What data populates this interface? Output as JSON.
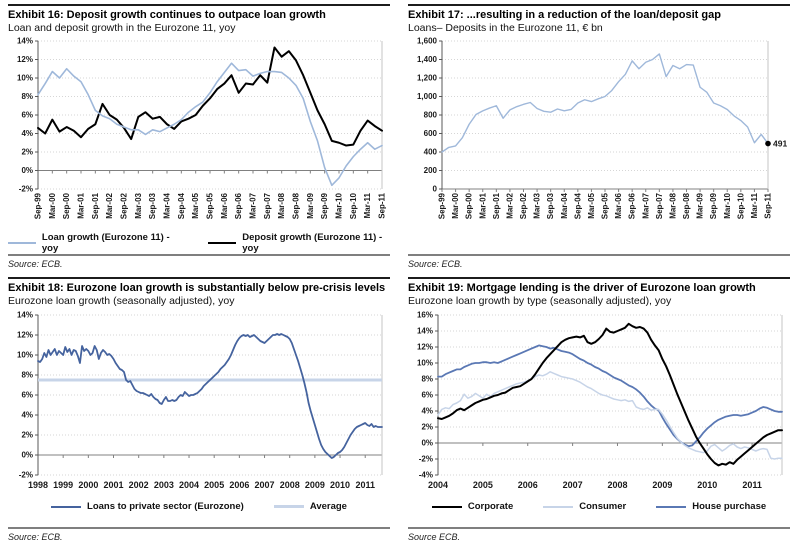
{
  "palette": {
    "grid": "#d6d6d6",
    "axis": "#595959",
    "zero_axis": "#808080",
    "right_border": "#c4c4c4",
    "light_blue": "#9fb8da",
    "pale_blue": "#c7d4e8",
    "mid_blue": "#5a78b4",
    "dark_blue": "#45639e",
    "black": "#000000"
  },
  "chart_data": [
    {
      "type": "line",
      "title": "Exhibit 16: Deposit growth continues to outpace loan growth",
      "subtitle": "Loan and deposit growth in the Eurozone 11, yoy",
      "source": "Source: ECB.",
      "ylim": [
        -2,
        14
      ],
      "yticks": [
        {
          "value": 14,
          "label": "14%"
        },
        {
          "value": 12,
          "label": "12%"
        },
        {
          "value": 10,
          "label": "10%"
        },
        {
          "value": 8,
          "label": "8%"
        },
        {
          "value": 6,
          "label": "6%"
        },
        {
          "value": 4,
          "label": "4%"
        },
        {
          "value": 2,
          "label": "2%"
        },
        {
          "value": 0,
          "label": "0%"
        },
        {
          "value": -2,
          "label": "-2%"
        }
      ],
      "zero_axis": 0,
      "x_labels": [
        "Sep-99",
        "Mar-00",
        "Sep-00",
        "Mar-01",
        "Sep-01",
        "Mar-02",
        "Sep-02",
        "Mar-03",
        "Sep-03",
        "Mar-04",
        "Sep-04",
        "Mar-05",
        "Sep-05",
        "Mar-06",
        "Sep-06",
        "Mar-07",
        "Sep-07",
        "Mar-08",
        "Sep-08",
        "Mar-09",
        "Sep-09",
        "Mar-10",
        "Sep-10",
        "Mar-11",
        "Sep-11"
      ],
      "points_per_label": 2,
      "rotate_x_labels": true,
      "series": [
        {
          "name": "Loan growth (Eurozone 11) - yoy",
          "color": "#9fb8da",
          "width": 1.6,
          "values": [
            8.2,
            9.4,
            10.7,
            10.0,
            11.0,
            10.2,
            9.6,
            8.2,
            6.5,
            5.9,
            5.6,
            5.0,
            4.7,
            4.4,
            4.4,
            3.9,
            4.4,
            4.2,
            4.6,
            5.0,
            5.5,
            6.3,
            6.9,
            7.4,
            8.4,
            9.6,
            10.6,
            11.6,
            10.8,
            10.9,
            10.2,
            10.5,
            10.7,
            10.7,
            10.6,
            10.0,
            9.2,
            7.8,
            5.3,
            3.2,
            0.3,
            -1.6,
            -0.8,
            0.5,
            1.5,
            2.3,
            3.0,
            2.3,
            2.7
          ]
        },
        {
          "name": "Deposit growth (Eurozone 11) - yoy",
          "color": "#000000",
          "width": 2,
          "values": [
            4.6,
            4.0,
            5.5,
            4.2,
            4.7,
            4.3,
            3.6,
            4.5,
            5.0,
            7.2,
            6.0,
            5.5,
            4.6,
            3.4,
            5.8,
            6.3,
            5.6,
            5.8,
            5.0,
            4.5,
            5.3,
            5.6,
            6.0,
            7.0,
            7.8,
            8.8,
            9.4,
            10.3,
            8.4,
            9.4,
            9.3,
            10.3,
            9.5,
            13.3,
            12.3,
            12.9,
            11.9,
            10.3,
            8.4,
            6.5,
            5.0,
            3.2,
            3.0,
            2.7,
            2.8,
            4.3,
            5.4,
            4.8,
            4.3
          ]
        }
      ],
      "legend": [
        {
          "label": "Loan growth (Eurozone 11) - yoy",
          "color": "#9fb8da",
          "thickness": 2
        },
        {
          "label": "Deposit growth (Eurozone 11) - yoy",
          "color": "#000000",
          "thickness": 2
        }
      ]
    },
    {
      "type": "line",
      "title": "Exhibit 17: ...resulting in a reduction of the loan/deposit gap",
      "subtitle": "Loans– Deposits in the Eurozone 11, € bn",
      "source": "Source: ECB.",
      "ylim": [
        0,
        1600
      ],
      "yticks": [
        {
          "value": 1600,
          "label": "1,600"
        },
        {
          "value": 1400,
          "label": "1,400"
        },
        {
          "value": 1200,
          "label": "1,200"
        },
        {
          "value": 1000,
          "label": "1,000"
        },
        {
          "value": 800,
          "label": "800"
        },
        {
          "value": 600,
          "label": "600"
        },
        {
          "value": 400,
          "label": "400"
        },
        {
          "value": 200,
          "label": "200"
        },
        {
          "value": 0,
          "label": "0"
        }
      ],
      "zero_axis": 0,
      "x_labels": [
        "Sep-99",
        "Mar-00",
        "Sep-00",
        "Mar-01",
        "Sep-01",
        "Mar-02",
        "Sep-02",
        "Mar-03",
        "Sep-03",
        "Mar-04",
        "Sep-04",
        "Mar-05",
        "Sep-05",
        "Mar-06",
        "Sep-06",
        "Mar-07",
        "Sep-07",
        "Mar-08",
        "Sep-08",
        "Mar-09",
        "Sep-09",
        "Mar-10",
        "Sep-10",
        "Mar-11",
        "Sep-11"
      ],
      "points_per_label": 2,
      "rotate_x_labels": true,
      "series": [
        {
          "name": "Loans minus deposits (Eurozone 11)",
          "color": "#9fb8da",
          "width": 1.4,
          "values": [
            400,
            450,
            465,
            555,
            700,
            805,
            845,
            875,
            900,
            765,
            855,
            890,
            915,
            935,
            870,
            840,
            830,
            865,
            845,
            860,
            930,
            965,
            945,
            975,
            1000,
            1065,
            1160,
            1240,
            1385,
            1300,
            1370,
            1400,
            1460,
            1215,
            1335,
            1300,
            1345,
            1340,
            1100,
            1045,
            930,
            900,
            860,
            790,
            740,
            670,
            500,
            590,
            491
          ]
        }
      ],
      "annotation": {
        "label": "491",
        "value": 491
      }
    },
    {
      "type": "line",
      "title": "Exhibit 18: Eurozone loan growth is substantially below pre-crisis levels",
      "subtitle": "Eurozone loan growth (seasonally adjusted), yoy",
      "source": "Source: ECB.",
      "ylim": [
        -2,
        14
      ],
      "yticks": [
        {
          "value": 14,
          "label": "14%"
        },
        {
          "value": 12,
          "label": "12%"
        },
        {
          "value": 10,
          "label": "10%"
        },
        {
          "value": 8,
          "label": "8%"
        },
        {
          "value": 6,
          "label": "6%"
        },
        {
          "value": 4,
          "label": "4%"
        },
        {
          "value": 2,
          "label": "2%"
        },
        {
          "value": 0,
          "label": "0%"
        },
        {
          "value": -2,
          "label": "-2%"
        }
      ],
      "zero_axis": 0,
      "x_labels": [
        "1998",
        "1999",
        "2000",
        "2001",
        "2002",
        "2003",
        "2004",
        "2005",
        "2006",
        "2007",
        "2008",
        "2009",
        "2010",
        "2011"
      ],
      "points_per_label": 12,
      "rotate_x_labels": false,
      "series": [
        {
          "name": "Loans to private sector (Eurozone)",
          "color": "#45639e",
          "width": 1.8,
          "values": [
            9.4,
            9.3,
            9.6,
            10.2,
            9.8,
            10.5,
            10.0,
            10.3,
            10.6,
            10.0,
            10.4,
            10.2,
            10.0,
            10.8,
            10.3,
            10.6,
            10.0,
            10.5,
            10.4,
            9.9,
            9.2,
            10.9,
            10.4,
            10.6,
            10.4,
            10.0,
            10.2,
            10.9,
            10.5,
            9.6,
            10.2,
            10.5,
            10.3,
            10.0,
            10.1,
            9.9,
            9.6,
            9.2,
            8.9,
            8.6,
            8.5,
            8.3,
            7.5,
            7.3,
            7.4,
            7.0,
            6.6,
            6.4,
            6.3,
            6.2,
            6.2,
            6.1,
            6.0,
            5.9,
            6.1,
            5.8,
            5.6,
            5.5,
            5.2,
            5.1,
            5.5,
            5.8,
            5.4,
            5.4,
            5.5,
            5.4,
            5.5,
            5.8,
            6.0,
            5.9,
            6.3,
            6.1,
            5.9,
            6.0,
            6.0,
            6.1,
            6.2,
            6.4,
            6.6,
            6.9,
            7.1,
            7.3,
            7.5,
            7.7,
            7.9,
            8.1,
            8.3,
            8.6,
            8.8,
            9.0,
            9.3,
            9.6,
            10.0,
            10.5,
            11.0,
            11.4,
            11.7,
            11.9,
            12.0,
            11.9,
            12.0,
            11.8,
            11.9,
            12.0,
            11.8,
            11.6,
            11.4,
            11.3,
            11.2,
            11.4,
            11.6,
            11.8,
            12.0,
            12.0,
            12.1,
            12.0,
            12.1,
            12.0,
            11.9,
            11.8,
            11.6,
            11.2,
            10.6,
            10.0,
            9.4,
            8.7,
            8.0,
            7.2,
            6.3,
            5.2,
            4.4,
            3.7,
            3.0,
            2.3,
            1.6,
            1.0,
            0.6,
            0.3,
            0.1,
            -0.1,
            -0.3,
            -0.2,
            0.0,
            0.2,
            0.3,
            0.5,
            0.8,
            1.2,
            1.6,
            2.0,
            2.3,
            2.6,
            2.8,
            2.9,
            3.0,
            3.1,
            3.2,
            3.0,
            2.9,
            3.1,
            2.8,
            2.9,
            2.8,
            2.8,
            2.8
          ]
        },
        {
          "name": "Average",
          "color": "#c7d4e8",
          "width": 3,
          "constant": 7.5
        }
      ],
      "legend": [
        {
          "label": "Loans to private sector (Eurozone)",
          "color": "#45639e",
          "thickness": 2
        },
        {
          "label": "Average",
          "color": "#c7d4e8",
          "thickness": 3
        }
      ]
    },
    {
      "type": "line",
      "title": "Exhibit 19: Mortgage lending is the driver of Eurozone loan growth",
      "subtitle": "Eurozone loan growth by type (seasonally adjusted), yoy",
      "source": "Source ECB.",
      "ylim": [
        -4,
        16
      ],
      "yticks": [
        {
          "value": 16,
          "label": "16%"
        },
        {
          "value": 14,
          "label": "14%"
        },
        {
          "value": 12,
          "label": "12%"
        },
        {
          "value": 10,
          "label": "10%"
        },
        {
          "value": 8,
          "label": "8%"
        },
        {
          "value": 6,
          "label": "6%"
        },
        {
          "value": 4,
          "label": "4%"
        },
        {
          "value": 2,
          "label": "2%"
        },
        {
          "value": 0,
          "label": "0%"
        },
        {
          "value": -2,
          "label": "-2%"
        },
        {
          "value": -4,
          "label": "-4%"
        }
      ],
      "zero_axis": 0,
      "x_labels": [
        "2004",
        "2005",
        "2006",
        "2007",
        "2008",
        "2009",
        "2010",
        "2011"
      ],
      "points_per_label": 12,
      "rotate_x_labels": false,
      "series": [
        {
          "name": "Corporate",
          "color": "#000000",
          "width": 2,
          "values": [
            3.1,
            3.0,
            3.2,
            3.4,
            3.7,
            4.1,
            4.3,
            4.1,
            4.4,
            4.7,
            5.0,
            5.2,
            5.4,
            5.5,
            5.7,
            5.9,
            6.0,
            6.2,
            6.3,
            6.6,
            6.9,
            7.0,
            7.1,
            7.4,
            7.7,
            8.0,
            8.6,
            9.3,
            10.0,
            10.6,
            11.1,
            11.6,
            12.1,
            12.6,
            12.9,
            13.1,
            13.2,
            13.3,
            13.2,
            13.4,
            12.6,
            12.4,
            12.6,
            13.0,
            13.5,
            14.3,
            13.9,
            13.8,
            14.0,
            14.2,
            14.4,
            14.9,
            14.6,
            14.4,
            14.5,
            14.3,
            13.8,
            12.9,
            12.2,
            11.6,
            10.5,
            9.6,
            8.5,
            7.3,
            6.1,
            5.0,
            3.9,
            2.8,
            1.8,
            0.8,
            0.0,
            -0.7,
            -1.4,
            -2.0,
            -2.5,
            -2.8,
            -2.6,
            -2.7,
            -2.4,
            -2.6,
            -2.1,
            -1.7,
            -1.3,
            -0.9,
            -0.5,
            -0.1,
            0.3,
            0.7,
            1.0,
            1.2,
            1.4,
            1.6,
            1.6
          ]
        },
        {
          "name": "Consumer",
          "color": "#c7d4e8",
          "width": 1.5,
          "values": [
            3.5,
            4.2,
            4.4,
            4.3,
            4.8,
            5.0,
            5.3,
            6.1,
            5.6,
            5.8,
            6.2,
            5.9,
            5.6,
            6.1,
            5.8,
            6.2,
            6.4,
            6.6,
            6.8,
            7.0,
            7.2,
            7.4,
            7.5,
            7.6,
            7.8,
            8.0,
            8.3,
            8.5,
            8.4,
            8.6,
            8.9,
            8.7,
            8.5,
            8.3,
            8.2,
            8.1,
            8.0,
            7.8,
            7.6,
            7.3,
            7.0,
            6.8,
            6.5,
            6.2,
            6.0,
            5.9,
            5.7,
            5.5,
            5.4,
            5.3,
            5.4,
            5.2,
            5.3,
            4.5,
            4.3,
            4.2,
            4.4,
            4.1,
            4.2,
            4.2,
            3.6,
            2.9,
            2.1,
            1.3,
            0.6,
            0.1,
            -0.3,
            -0.6,
            -0.8,
            -1.0,
            -1.1,
            -1.2,
            -1.0,
            -0.4,
            -0.2,
            -0.6,
            -1.0,
            -0.7,
            -0.3,
            -0.1,
            -0.5,
            -0.7,
            -0.5,
            -0.6,
            -0.8,
            -1.0,
            -0.8,
            -0.7,
            -0.8,
            -1.9,
            -2.0,
            -1.9,
            -1.9
          ]
        },
        {
          "name": "House purchase",
          "color": "#5a78b4",
          "width": 1.8,
          "values": [
            8.3,
            8.3,
            8.6,
            8.8,
            9.0,
            9.2,
            9.2,
            9.5,
            9.7,
            9.9,
            10.0,
            10.0,
            10.1,
            10.1,
            10.0,
            10.1,
            10.0,
            10.2,
            10.4,
            10.6,
            10.8,
            11.0,
            11.2,
            11.4,
            11.6,
            11.8,
            12.0,
            12.2,
            12.1,
            12.0,
            11.8,
            11.9,
            11.7,
            11.5,
            11.4,
            11.3,
            11.1,
            10.8,
            10.5,
            10.3,
            10.0,
            9.8,
            9.5,
            9.3,
            9.0,
            8.8,
            8.5,
            8.2,
            8.0,
            7.8,
            7.5,
            7.2,
            7.0,
            6.7,
            6.3,
            5.8,
            5.2,
            4.7,
            4.3,
            4.1,
            3.2,
            2.4,
            1.7,
            1.0,
            0.5,
            0.1,
            -0.2,
            -0.4,
            -0.3,
            0.2,
            0.7,
            1.3,
            1.8,
            2.2,
            2.6,
            2.9,
            3.1,
            3.3,
            3.4,
            3.5,
            3.5,
            3.4,
            3.5,
            3.6,
            3.8,
            4.0,
            4.3,
            4.5,
            4.4,
            4.2,
            4.0,
            3.9,
            3.9
          ]
        }
      ],
      "legend": [
        {
          "label": "Corporate",
          "color": "#000000",
          "thickness": 2
        },
        {
          "label": "Consumer",
          "color": "#c7d4e8",
          "thickness": 2
        },
        {
          "label": "House purchase",
          "color": "#5a78b4",
          "thickness": 2
        }
      ]
    }
  ]
}
